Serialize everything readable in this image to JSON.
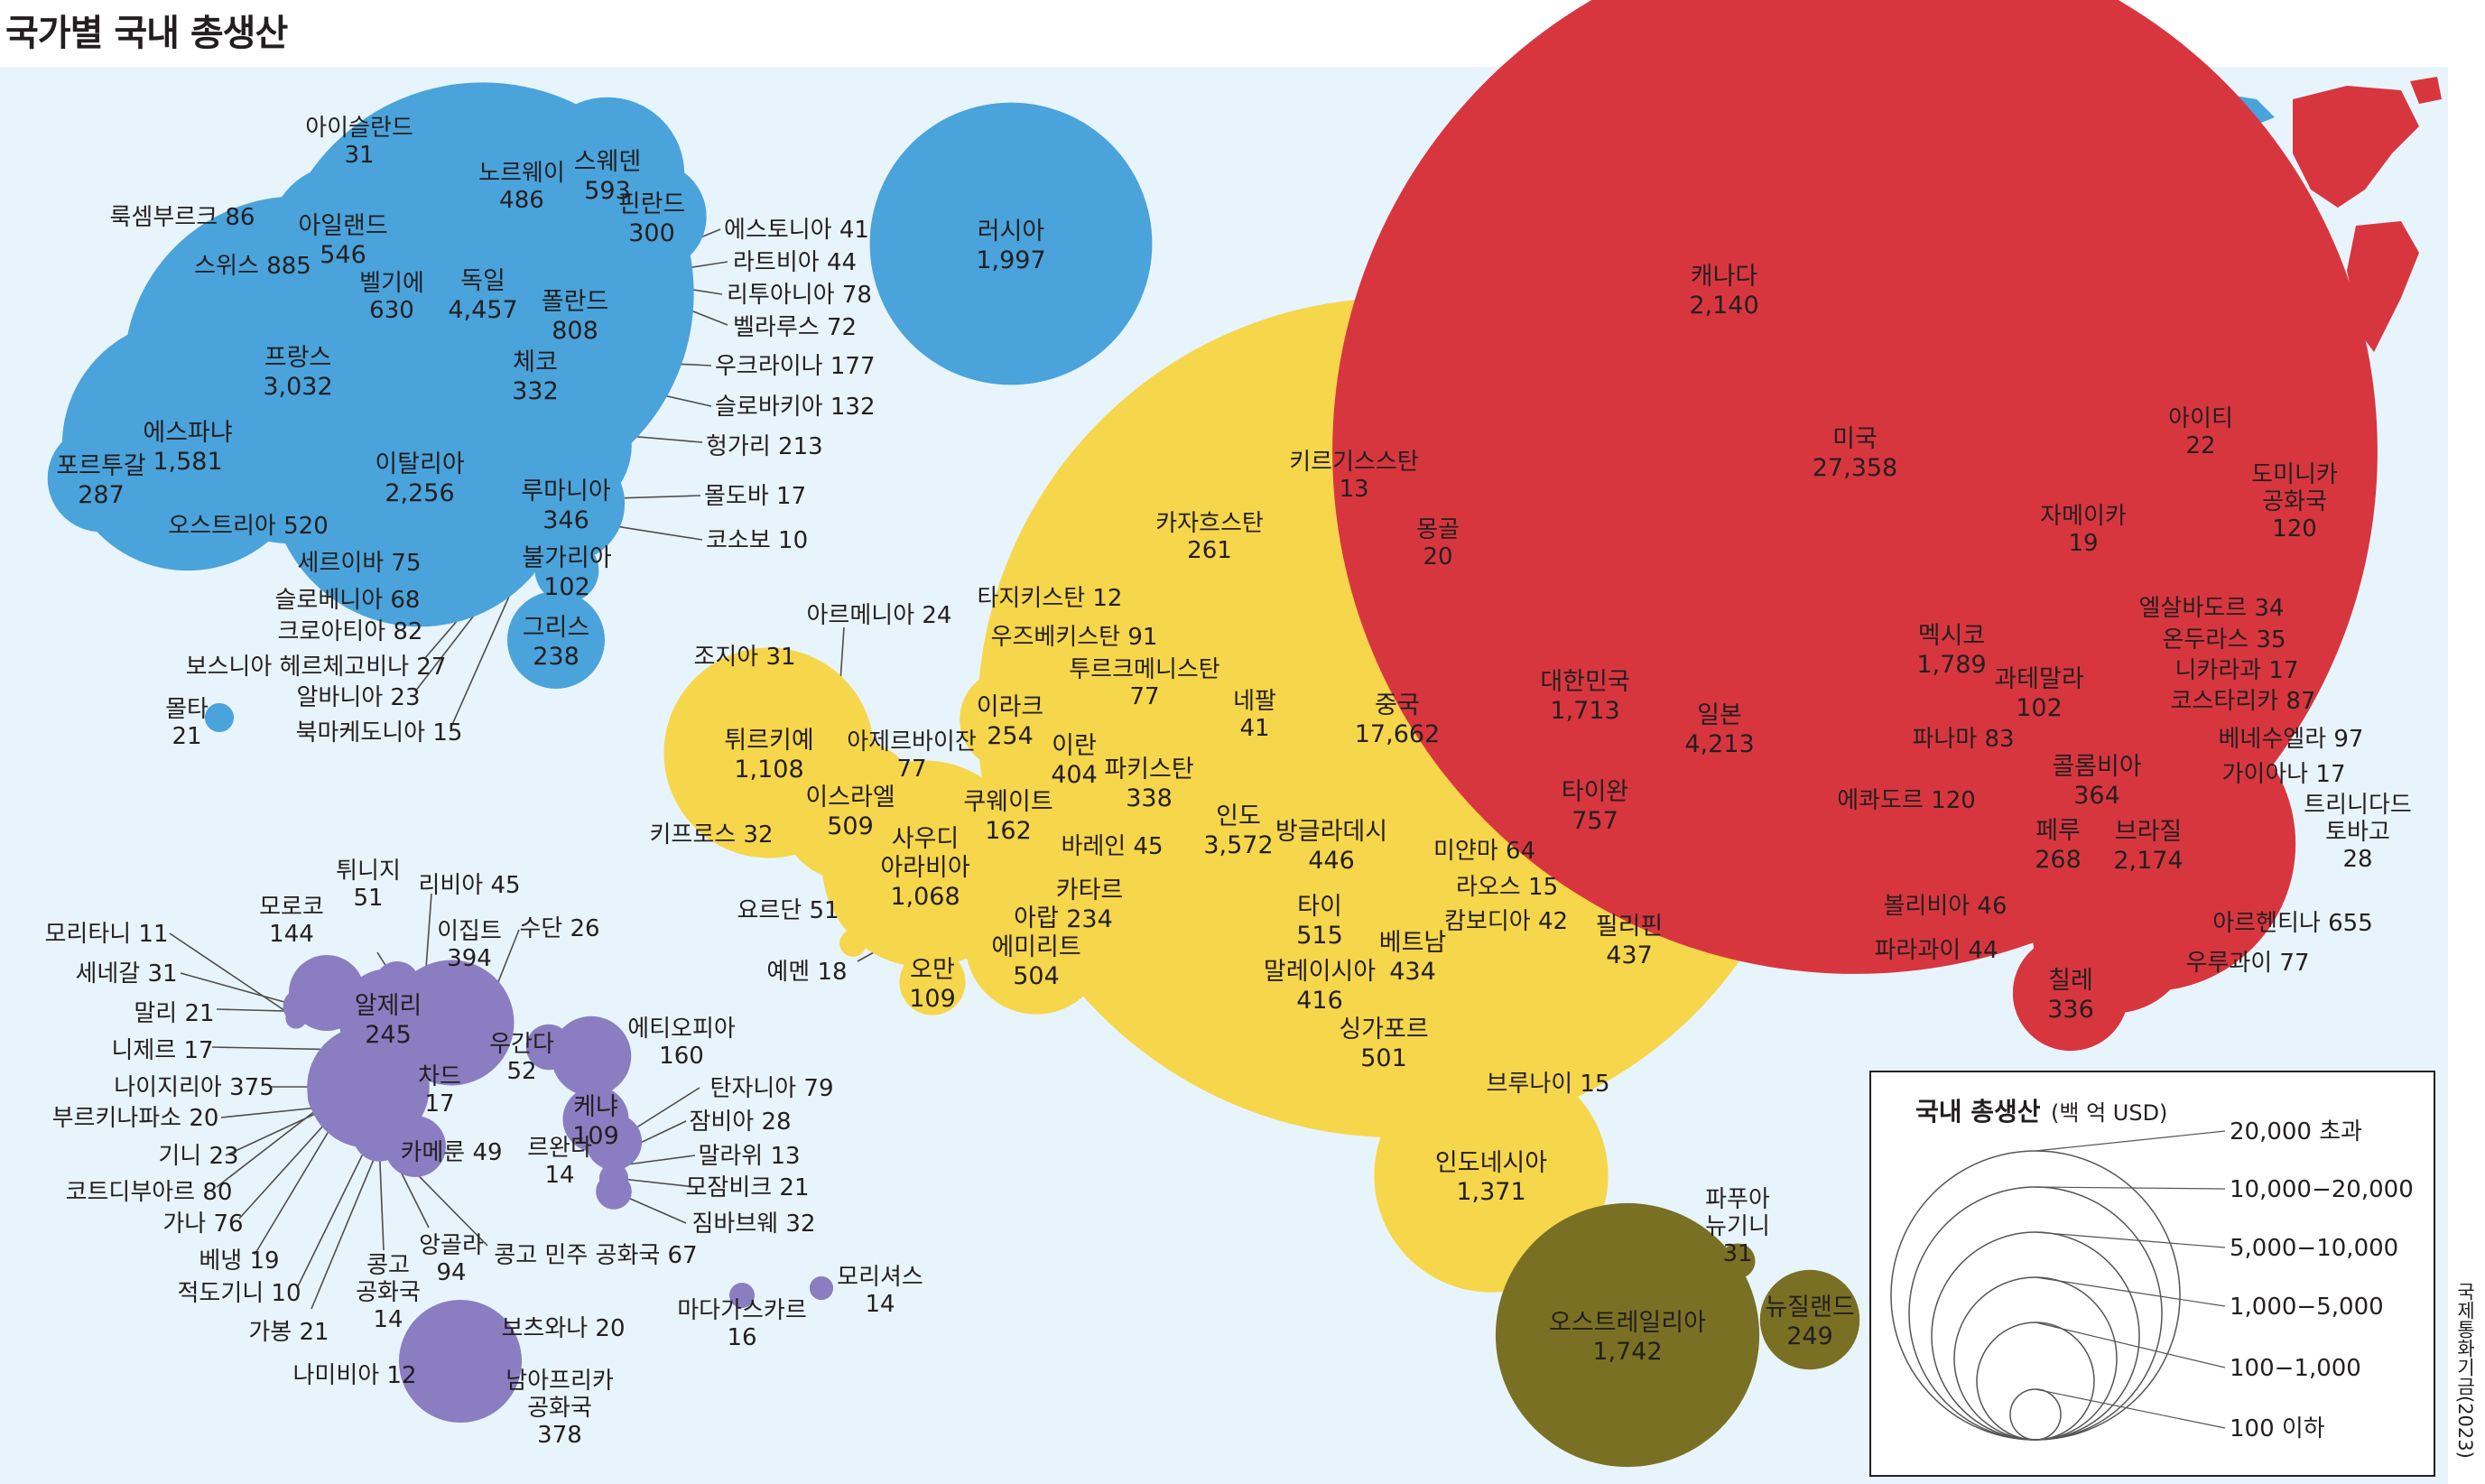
{
  "title": "국가별 국내 총생산",
  "source": "국제통화기금(2023)",
  "colors": {
    "background": "#e8f4fb",
    "europe": "#4aa3db",
    "asia": "#f6d64b",
    "americas": "#d8363f",
    "africa": "#8a7dc1",
    "oceania": "#7a7024",
    "leader": "#4d4d4d"
  },
  "legend": {
    "title": "국내 총생산",
    "unit": "(백 억 USD)",
    "classes": [
      "20,000  초과",
      "10,000−20,000",
      "5,000−10,000",
      "1,000−5,000",
      "100−1,000",
      "100  이하"
    ]
  },
  "chart_data": {
    "type": "bubble",
    "title": "국가별 국내 총생산",
    "unit": "(백 억 USD)",
    "regions": [
      {
        "name": "europe",
        "countries": [
          {
            "name": "러시아",
            "value": 1997
          },
          {
            "name": "독일",
            "value": 4457
          },
          {
            "name": "프랑스",
            "value": 3032
          },
          {
            "name": "이탈리아",
            "value": 2256
          },
          {
            "name": "에스파냐",
            "value": 1581
          },
          {
            "name": "스위스",
            "value": 885
          },
          {
            "name": "폴란드",
            "value": 808
          },
          {
            "name": "벨기에",
            "value": 630
          },
          {
            "name": "스웨덴",
            "value": 593
          },
          {
            "name": "아일랜드",
            "value": 546
          },
          {
            "name": "오스트리아",
            "value": 520
          },
          {
            "name": "노르웨이",
            "value": 486
          },
          {
            "name": "루마니아",
            "value": 346
          },
          {
            "name": "체코",
            "value": 332
          },
          {
            "name": "핀란드",
            "value": 300
          },
          {
            "name": "포르투갈",
            "value": 287
          },
          {
            "name": "그리스",
            "value": 238
          },
          {
            "name": "헝가리",
            "value": 213
          },
          {
            "name": "우크라이나",
            "value": 177
          },
          {
            "name": "슬로바키아",
            "value": 132
          },
          {
            "name": "불가리아",
            "value": 102
          },
          {
            "name": "룩셈부르크",
            "value": 86
          },
          {
            "name": "크로아티아",
            "value": 82
          },
          {
            "name": "리투아니아",
            "value": 78
          },
          {
            "name": "세르이바",
            "value": 75
          },
          {
            "name": "벨라루스",
            "value": 72
          },
          {
            "name": "슬로베니아",
            "value": 68
          },
          {
            "name": "라트비아",
            "value": 44
          },
          {
            "name": "에스토니아",
            "value": 41
          },
          {
            "name": "아이슬란드",
            "value": 31
          },
          {
            "name": "보스니아 헤르체고비나",
            "value": 27
          },
          {
            "name": "알바니아",
            "value": 23
          },
          {
            "name": "몰타",
            "value": 21
          },
          {
            "name": "몰도바",
            "value": 17
          },
          {
            "name": "북마케도니아",
            "value": 15
          },
          {
            "name": "코소보",
            "value": 10
          }
        ]
      },
      {
        "name": "asia",
        "countries": [
          {
            "name": "중국",
            "value": 17662
          },
          {
            "name": "일본",
            "value": 4213
          },
          {
            "name": "인도",
            "value": 3572
          },
          {
            "name": "대한민국",
            "value": 1713
          },
          {
            "name": "인도네시아",
            "value": 1371
          },
          {
            "name": "튀르키예",
            "value": 1108
          },
          {
            "name": "사우디 아라비아",
            "value": 1068
          },
          {
            "name": "타이완",
            "value": 757
          },
          {
            "name": "이스라엘",
            "value": 509
          },
          {
            "name": "타이",
            "value": 515
          },
          {
            "name": "아랍 에미리트",
            "value": 504
          },
          {
            "name": "싱가포르",
            "value": 501
          },
          {
            "name": "방글라데시",
            "value": 446
          },
          {
            "name": "필리핀",
            "value": 437
          },
          {
            "name": "베트남",
            "value": 434
          },
          {
            "name": "말레이시아",
            "value": 416
          },
          {
            "name": "이란",
            "value": 404
          },
          {
            "name": "파키스탄",
            "value": 338
          },
          {
            "name": "카자흐스탄",
            "value": 261
          },
          {
            "name": "이라크",
            "value": 254
          },
          {
            "name": "카타르",
            "value": 234
          },
          {
            "name": "쿠웨이트",
            "value": 162
          },
          {
            "name": "오만",
            "value": 109
          },
          {
            "name": "우즈베키스탄",
            "value": 91
          },
          {
            "name": "아제르바이잔",
            "value": 77
          },
          {
            "name": "투르크메니스탄",
            "value": 77
          },
          {
            "name": "미얀마",
            "value": 64
          },
          {
            "name": "요르단",
            "value": 51
          },
          {
            "name": "바레인",
            "value": 45
          },
          {
            "name": "캄보디아",
            "value": 42
          },
          {
            "name": "네팔",
            "value": 41
          },
          {
            "name": "키프로스",
            "value": 32
          },
          {
            "name": "조지아",
            "value": 31
          },
          {
            "name": "아르메니아",
            "value": 24
          },
          {
            "name": "몽골",
            "value": 20
          },
          {
            "name": "예멘",
            "value": 18
          },
          {
            "name": "라오스",
            "value": 15
          },
          {
            "name": "브루나이",
            "value": 15
          },
          {
            "name": "키르기스스탄",
            "value": 13
          },
          {
            "name": "타지키스탄",
            "value": 12
          }
        ]
      },
      {
        "name": "americas",
        "countries": [
          {
            "name": "미국",
            "value": 27358
          },
          {
            "name": "브라질",
            "value": 2174
          },
          {
            "name": "캐나다",
            "value": 2140
          },
          {
            "name": "멕시코",
            "value": 1789
          },
          {
            "name": "아르헨티나",
            "value": 655
          },
          {
            "name": "콜롬비아",
            "value": 364
          },
          {
            "name": "칠레",
            "value": 336
          },
          {
            "name": "페루",
            "value": 268
          },
          {
            "name": "에콰도르",
            "value": 120
          },
          {
            "name": "도미니카 공화국",
            "value": 120
          },
          {
            "name": "과테말라",
            "value": 102
          },
          {
            "name": "베네수엘라",
            "value": 97
          },
          {
            "name": "코스타리카",
            "value": 87
          },
          {
            "name": "파나마",
            "value": 83
          },
          {
            "name": "우루과이",
            "value": 77
          },
          {
            "name": "볼리비아",
            "value": 46
          },
          {
            "name": "파라과이",
            "value": 44
          },
          {
            "name": "온두라스",
            "value": 35
          },
          {
            "name": "엘살바도르",
            "value": 34
          },
          {
            "name": "트리니다드 토바고",
            "value": 28
          },
          {
            "name": "아이티",
            "value": 22
          },
          {
            "name": "자메이카",
            "value": 19
          },
          {
            "name": "니카라과",
            "value": 17
          },
          {
            "name": "가이아나",
            "value": 17
          }
        ]
      },
      {
        "name": "africa",
        "countries": [
          {
            "name": "이집트",
            "value": 394
          },
          {
            "name": "남아프리카 공화국",
            "value": 378
          },
          {
            "name": "나이지리아",
            "value": 375
          },
          {
            "name": "알제리",
            "value": 245
          },
          {
            "name": "에티오피아",
            "value": 160
          },
          {
            "name": "모로코",
            "value": 144
          },
          {
            "name": "케냐",
            "value": 109
          },
          {
            "name": "앙골라",
            "value": 94
          },
          {
            "name": "코트디부아르",
            "value": 80
          },
          {
            "name": "탄자니아",
            "value": 79
          },
          {
            "name": "가나",
            "value": 76
          },
          {
            "name": "콩고 민주 공화국",
            "value": 67
          },
          {
            "name": "튀니지",
            "value": 51
          },
          {
            "name": "우간다",
            "value": 52
          },
          {
            "name": "카메룬",
            "value": 49
          },
          {
            "name": "리비아",
            "value": 45
          },
          {
            "name": "짐바브웨",
            "value": 32
          },
          {
            "name": "세네갈",
            "value": 31
          },
          {
            "name": "잠비아",
            "value": 28
          },
          {
            "name": "수단",
            "value": 26
          },
          {
            "name": "기니",
            "value": 23
          },
          {
            "name": "말리",
            "value": 21
          },
          {
            "name": "모잠비크",
            "value": 21
          },
          {
            "name": "가봉",
            "value": 21
          },
          {
            "name": "부르키나파소",
            "value": 20
          },
          {
            "name": "보츠와나",
            "value": 20
          },
          {
            "name": "베냉",
            "value": 19
          },
          {
            "name": "니제르",
            "value": 17
          },
          {
            "name": "차드",
            "value": 17
          },
          {
            "name": "마다가스카르",
            "value": 16
          },
          {
            "name": "콩고 공화국",
            "value": 14
          },
          {
            "name": "르완다",
            "value": 14
          },
          {
            "name": "모리셔스",
            "value": 14
          },
          {
            "name": "말라위",
            "value": 13
          },
          {
            "name": "나미비아",
            "value": 12
          },
          {
            "name": "모리타니",
            "value": 11
          },
          {
            "name": "적도기니",
            "value": 10
          }
        ]
      },
      {
        "name": "oceania",
        "countries": [
          {
            "name": "오스트레일리아",
            "value": 1742
          },
          {
            "name": "뉴질랜드",
            "value": 249
          },
          {
            "name": "파푸아 뉴기니",
            "value": 31
          }
        ]
      }
    ],
    "legend_classes": [
      "20,000  초과",
      "10,000−20,000",
      "5,000−10,000",
      "1,000−5,000",
      "100−1,000",
      "100  이하"
    ]
  }
}
